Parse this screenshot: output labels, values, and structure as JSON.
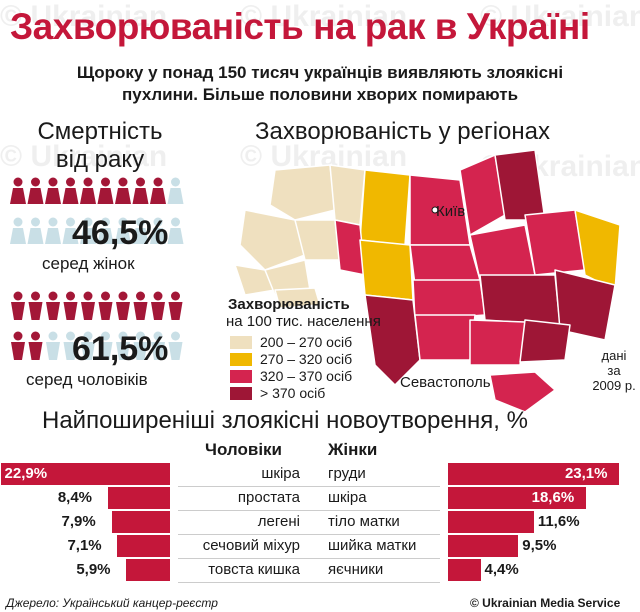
{
  "header": {
    "title": "Захворюваність на рак в Україні",
    "subtitle_line1": "Щороку у понад 150 тисяч українців виявляють злоякісні",
    "subtitle_line2": "пухлини. Більше половини хворих помирають"
  },
  "mortality": {
    "title_line1": "Смертність",
    "title_line2": "від раку",
    "women_pct": "46,5%",
    "women_label": "серед жінок",
    "men_pct": "61,5%",
    "men_label": "серед чоловіків",
    "women_share": 0.465,
    "men_share": 0.615,
    "icons_per_group": 20,
    "accent_color": "#a31737",
    "muted_color": "#c9dfe6"
  },
  "regions": {
    "title": "Захворюваність у регіонах",
    "capital_label": "Київ",
    "sevastopol_label": "Севастополь",
    "legend_title": "Захворюваність",
    "legend_subtitle": "на 100 тис. населення",
    "legend": [
      {
        "label": "200 – 270 осіб",
        "color": "#efe0bf"
      },
      {
        "label": "270 – 320 осіб",
        "color": "#f0b800"
      },
      {
        "label": "320 – 370 осіб",
        "color": "#d4244f"
      },
      {
        "label": "> 370 осіб",
        "color": "#9e1636"
      }
    ],
    "note_line1": "дані",
    "note_line2": "за",
    "note_line3": "2009 р."
  },
  "cancers": {
    "title": "Найпоширеніші злоякісні новоутворення, %",
    "men_header": "Чоловіки",
    "women_header": "Жінки",
    "bar_color": "#c4173a",
    "men": [
      {
        "site": "шкіра",
        "label": "22,9%",
        "value": 22.9
      },
      {
        "site": "простата",
        "label": "8,4%",
        "value": 8.4
      },
      {
        "site": "легені",
        "label": "7,9%",
        "value": 7.9
      },
      {
        "site": "сечовий міхур",
        "label": "7,1%",
        "value": 7.1
      },
      {
        "site": "товста кишка",
        "label": "5,9%",
        "value": 5.9
      }
    ],
    "women": [
      {
        "site": "груди",
        "label": "23,1%",
        "value": 23.1
      },
      {
        "site": "шкіра",
        "label": "18,6%",
        "value": 18.6
      },
      {
        "site": "тіло матки",
        "label": "11,6%",
        "value": 11.6
      },
      {
        "site": "шийка матки",
        "label": "9,5%",
        "value": 9.5
      },
      {
        "site": "яєчники",
        "label": "4,4%",
        "value": 4.4
      }
    ]
  },
  "footer": {
    "source": "Джерело: Український канцер-реєстр",
    "copyright": "© Ukrainian Media Service"
  },
  "watermark": {
    "brand_line1": "© Ukrainian",
    "brand_line2": "Media",
    "brand_line3": "Service"
  }
}
